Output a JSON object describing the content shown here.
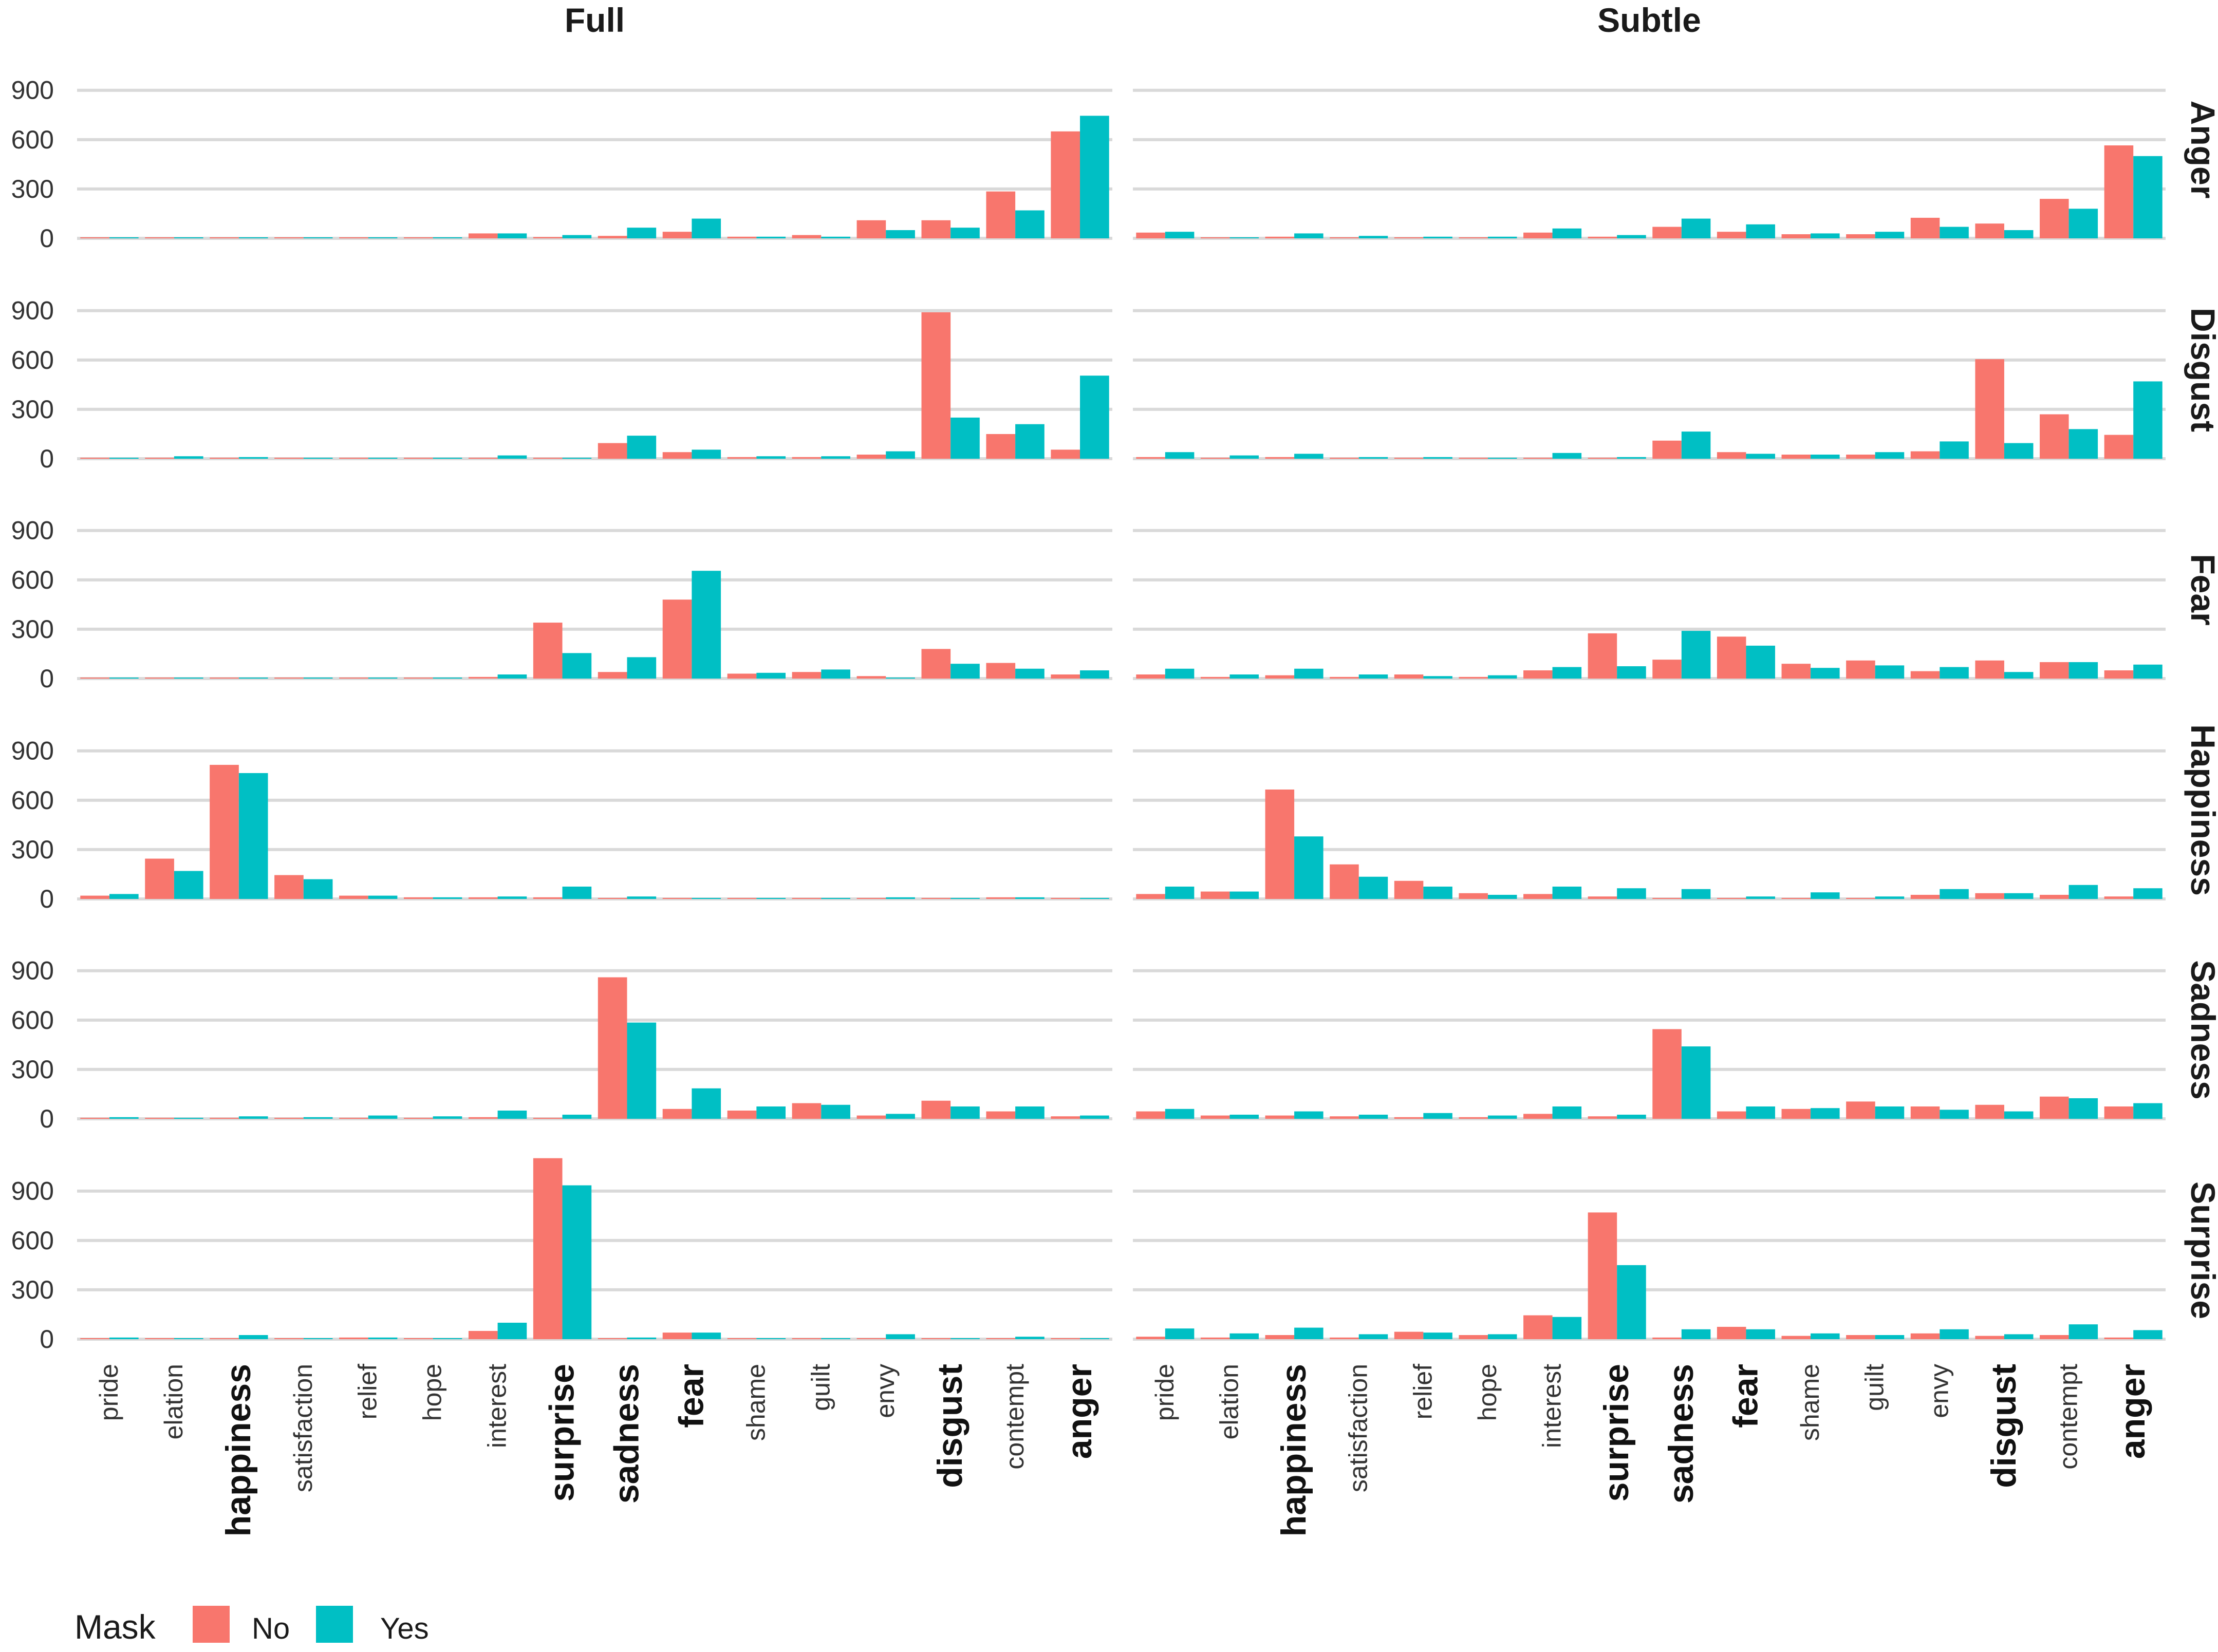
{
  "chart_data": {
    "type": "bar",
    "columns": [
      "Full",
      "Subtle"
    ],
    "rows": [
      "Anger",
      "Disgust",
      "Fear",
      "Happiness",
      "Sadness",
      "Surprise"
    ],
    "categories": [
      "pride",
      "elation",
      "happiness",
      "satisfaction",
      "relief",
      "hope",
      "interest",
      "surprise",
      "sadness",
      "fear",
      "shame",
      "guilt",
      "envy",
      "disgust",
      "contempt",
      "anger"
    ],
    "bold_categories": [
      "happiness",
      "surprise",
      "sadness",
      "fear",
      "disgust",
      "anger"
    ],
    "yticks": [
      "0",
      "300",
      "600",
      "900"
    ],
    "ylim": [
      0,
      1080
    ],
    "legend": {
      "title": "Mask",
      "entries": [
        "No",
        "Yes"
      ],
      "colors": [
        "#F8766D",
        "#00BFC4"
      ],
      "position": "bottom-left"
    },
    "panels": {
      "Full": {
        "Anger": {
          "No": [
            4,
            2,
            2,
            2,
            2,
            0,
            30,
            8,
            15,
            40,
            10,
            20,
            110,
            110,
            285,
            650
          ],
          "Yes": [
            2,
            2,
            2,
            2,
            2,
            0,
            30,
            20,
            65,
            120,
            10,
            10,
            50,
            65,
            170,
            745
          ]
        },
        "Disgust": {
          "No": [
            2,
            2,
            2,
            2,
            2,
            2,
            5,
            5,
            95,
            40,
            10,
            10,
            25,
            890,
            150,
            55
          ],
          "Yes": [
            5,
            15,
            10,
            5,
            2,
            5,
            20,
            5,
            140,
            55,
            15,
            15,
            45,
            250,
            210,
            505
          ]
        },
        "Fear": {
          "No": [
            2,
            2,
            2,
            2,
            2,
            2,
            10,
            340,
            40,
            480,
            30,
            40,
            15,
            180,
            95,
            25
          ],
          "Yes": [
            5,
            5,
            2,
            2,
            5,
            5,
            25,
            155,
            130,
            655,
            35,
            55,
            5,
            90,
            60,
            50
          ]
        },
        "Happiness": {
          "No": [
            20,
            245,
            815,
            145,
            20,
            10,
            10,
            10,
            5,
            5,
            5,
            5,
            5,
            5,
            10,
            5
          ],
          "Yes": [
            30,
            170,
            765,
            120,
            20,
            10,
            15,
            75,
            15,
            5,
            5,
            5,
            10,
            5,
            10,
            5
          ]
        },
        "Sadness": {
          "No": [
            5,
            2,
            2,
            2,
            2,
            2,
            10,
            5,
            860,
            60,
            50,
            95,
            20,
            110,
            45,
            15
          ],
          "Yes": [
            10,
            2,
            15,
            10,
            20,
            15,
            50,
            25,
            585,
            185,
            75,
            85,
            30,
            75,
            75,
            20
          ]
        },
        "Surprise": {
          "No": [
            2,
            2,
            5,
            2,
            10,
            5,
            50,
            1100,
            5,
            40,
            2,
            2,
            2,
            2,
            2,
            2
          ],
          "Yes": [
            10,
            2,
            25,
            5,
            10,
            5,
            100,
            935,
            10,
            40,
            5,
            5,
            30,
            5,
            15,
            5
          ]
        }
      },
      "Subtle": {
        "Anger": {
          "No": [
            35,
            5,
            10,
            5,
            5,
            5,
            35,
            10,
            70,
            40,
            25,
            25,
            125,
            90,
            240,
            565
          ],
          "Yes": [
            40,
            5,
            30,
            15,
            10,
            10,
            60,
            20,
            120,
            85,
            30,
            40,
            70,
            50,
            180,
            500
          ]
        },
        "Disgust": {
          "No": [
            10,
            5,
            10,
            5,
            5,
            5,
            5,
            5,
            110,
            40,
            25,
            25,
            45,
            605,
            270,
            145
          ],
          "Yes": [
            40,
            20,
            30,
            10,
            10,
            5,
            35,
            10,
            165,
            30,
            25,
            40,
            105,
            95,
            180,
            470
          ]
        },
        "Fear": {
          "No": [
            25,
            10,
            20,
            10,
            25,
            10,
            50,
            275,
            115,
            255,
            90,
            110,
            45,
            110,
            100,
            50
          ],
          "Yes": [
            60,
            25,
            60,
            25,
            15,
            20,
            70,
            75,
            290,
            200,
            65,
            80,
            70,
            40,
            100,
            85
          ]
        },
        "Happiness": {
          "No": [
            30,
            45,
            665,
            210,
            110,
            35,
            30,
            15,
            5,
            5,
            5,
            5,
            25,
            35,
            25,
            15
          ],
          "Yes": [
            75,
            45,
            380,
            135,
            75,
            25,
            75,
            65,
            60,
            15,
            40,
            15,
            60,
            35,
            85,
            65
          ]
        },
        "Sadness": {
          "No": [
            45,
            20,
            20,
            15,
            10,
            10,
            30,
            15,
            545,
            45,
            60,
            105,
            75,
            85,
            135,
            75
          ],
          "Yes": [
            60,
            25,
            45,
            25,
            35,
            20,
            75,
            25,
            440,
            75,
            65,
            75,
            55,
            45,
            125,
            95
          ]
        },
        "Surprise": {
          "No": [
            15,
            10,
            25,
            10,
            45,
            25,
            145,
            770,
            10,
            75,
            20,
            25,
            35,
            20,
            25,
            10
          ],
          "Yes": [
            65,
            35,
            70,
            30,
            40,
            30,
            135,
            450,
            60,
            60,
            35,
            25,
            60,
            30,
            90,
            55
          ]
        }
      }
    }
  }
}
